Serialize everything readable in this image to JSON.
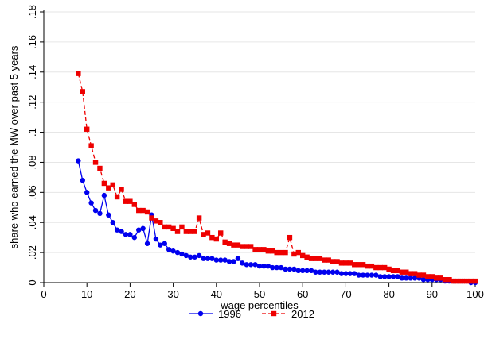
{
  "chart_data": {
    "type": "line",
    "title": "",
    "xlabel": "wage percentiles",
    "ylabel": "share who earned the MW over past 5 years",
    "xlim": [
      0,
      100
    ],
    "ylim": [
      0,
      0.18
    ],
    "x_ticks": [
      0,
      10,
      20,
      30,
      40,
      50,
      60,
      70,
      80,
      90,
      100
    ],
    "x_tick_labels": [
      "0",
      "10",
      "20",
      "30",
      "40",
      "50",
      "60",
      "70",
      "80",
      "90",
      "100"
    ],
    "y_ticks": [
      0,
      0.02,
      0.04,
      0.06,
      0.08,
      0.1,
      0.12,
      0.14,
      0.16,
      0.18
    ],
    "y_tick_labels": [
      "0",
      ".02",
      ".04",
      ".06",
      ".08",
      ".1",
      ".12",
      ".14",
      ".16",
      ".18"
    ],
    "grid": "horizontal",
    "legend_position": "bottom",
    "colors": {
      "1996": "#0000ee",
      "2012": "#ee0000",
      "grid": "#e6e6e6"
    },
    "series": [
      {
        "name": "1996",
        "marker": "circle",
        "x": [
          8,
          9,
          10,
          11,
          12,
          13,
          14,
          15,
          16,
          17,
          18,
          19,
          20,
          21,
          22,
          23,
          24,
          25,
          26,
          27,
          28,
          29,
          30,
          31,
          32,
          33,
          34,
          35,
          36,
          37,
          38,
          39,
          40,
          41,
          42,
          43,
          44,
          45,
          46,
          47,
          48,
          49,
          50,
          51,
          52,
          53,
          54,
          55,
          56,
          57,
          58,
          59,
          60,
          61,
          62,
          63,
          64,
          65,
          66,
          67,
          68,
          69,
          70,
          71,
          72,
          73,
          74,
          75,
          76,
          77,
          78,
          79,
          80,
          81,
          82,
          83,
          84,
          85,
          86,
          87,
          88,
          89,
          90,
          91,
          92,
          93,
          94,
          95,
          96,
          97,
          98,
          99,
          100
        ],
        "y": [
          0.081,
          0.068,
          0.06,
          0.053,
          0.048,
          0.046,
          0.058,
          0.045,
          0.04,
          0.035,
          0.034,
          0.032,
          0.032,
          0.03,
          0.035,
          0.036,
          0.026,
          0.045,
          0.029,
          0.025,
          0.026,
          0.022,
          0.021,
          0.02,
          0.019,
          0.018,
          0.017,
          0.017,
          0.018,
          0.016,
          0.016,
          0.016,
          0.015,
          0.015,
          0.015,
          0.014,
          0.014,
          0.016,
          0.013,
          0.012,
          0.012,
          0.012,
          0.011,
          0.011,
          0.011,
          0.01,
          0.01,
          0.01,
          0.009,
          0.009,
          0.009,
          0.008,
          0.008,
          0.008,
          0.008,
          0.007,
          0.007,
          0.007,
          0.007,
          0.007,
          0.007,
          0.006,
          0.006,
          0.006,
          0.006,
          0.005,
          0.005,
          0.005,
          0.005,
          0.005,
          0.004,
          0.004,
          0.004,
          0.004,
          0.004,
          0.003,
          0.003,
          0.003,
          0.003,
          0.003,
          0.002,
          0.002,
          0.002,
          0.002,
          0.002,
          0.001,
          0.001,
          0.001,
          0.001,
          0.001,
          0.001,
          0.0,
          0.0
        ]
      },
      {
        "name": "2012",
        "marker": "square",
        "x": [
          8,
          9,
          10,
          11,
          12,
          13,
          14,
          15,
          16,
          17,
          18,
          19,
          20,
          21,
          22,
          23,
          24,
          25,
          26,
          27,
          28,
          29,
          30,
          31,
          32,
          33,
          34,
          35,
          36,
          37,
          38,
          39,
          40,
          41,
          42,
          43,
          44,
          45,
          46,
          47,
          48,
          49,
          50,
          51,
          52,
          53,
          54,
          55,
          56,
          57,
          58,
          59,
          60,
          61,
          62,
          63,
          64,
          65,
          66,
          67,
          68,
          69,
          70,
          71,
          72,
          73,
          74,
          75,
          76,
          77,
          78,
          79,
          80,
          81,
          82,
          83,
          84,
          85,
          86,
          87,
          88,
          89,
          90,
          91,
          92,
          93,
          94,
          95,
          96,
          97,
          98,
          99,
          100
        ],
        "y": [
          0.139,
          0.127,
          0.102,
          0.091,
          0.08,
          0.076,
          0.066,
          0.063,
          0.065,
          0.057,
          0.062,
          0.054,
          0.054,
          0.052,
          0.048,
          0.048,
          0.047,
          0.043,
          0.041,
          0.04,
          0.037,
          0.037,
          0.036,
          0.034,
          0.037,
          0.034,
          0.034,
          0.034,
          0.043,
          0.032,
          0.033,
          0.03,
          0.029,
          0.033,
          0.027,
          0.026,
          0.025,
          0.025,
          0.024,
          0.024,
          0.024,
          0.022,
          0.022,
          0.022,
          0.021,
          0.021,
          0.02,
          0.02,
          0.02,
          0.03,
          0.019,
          0.02,
          0.018,
          0.017,
          0.016,
          0.016,
          0.016,
          0.015,
          0.015,
          0.014,
          0.014,
          0.013,
          0.013,
          0.013,
          0.012,
          0.012,
          0.012,
          0.011,
          0.011,
          0.01,
          0.01,
          0.01,
          0.009,
          0.008,
          0.008,
          0.007,
          0.007,
          0.006,
          0.006,
          0.005,
          0.005,
          0.004,
          0.004,
          0.003,
          0.003,
          0.002,
          0.002,
          0.001,
          0.001,
          0.001,
          0.001,
          0.001,
          0.001
        ]
      }
    ]
  }
}
